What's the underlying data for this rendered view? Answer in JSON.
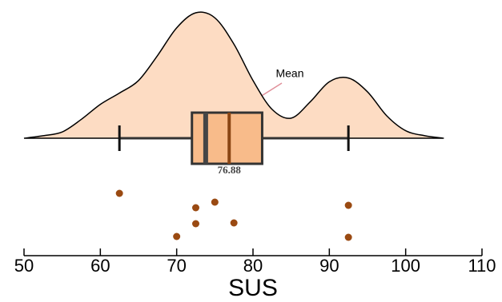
{
  "chart_data": {
    "type": "raincloud",
    "xlabel": "SUS",
    "xlim": [
      50,
      110
    ],
    "xticks": [
      50,
      60,
      70,
      80,
      90,
      100,
      110
    ],
    "density": {
      "x": [
        50,
        52.5,
        55,
        57.5,
        60,
        62.5,
        65,
        67.5,
        70,
        72.5,
        75,
        77.5,
        80,
        82.5,
        85,
        87.5,
        90,
        92.5,
        95,
        97.5,
        100,
        102.5,
        105
      ],
      "values": [
        0,
        0.02,
        0.05,
        0.15,
        0.27,
        0.36,
        0.46,
        0.66,
        0.88,
        1.0,
        0.96,
        0.75,
        0.46,
        0.23,
        0.16,
        0.29,
        0.45,
        0.48,
        0.37,
        0.18,
        0.06,
        0.02,
        0
      ],
      "color": "#fddcc3"
    },
    "box": {
      "min": 62.5,
      "q1": 72,
      "median": 73.8,
      "q3": 81.2,
      "max": 92.5,
      "mean": 76.88,
      "color": "#f8bb8a",
      "median_color": "#454545",
      "mean_color": "#8b4513"
    },
    "annotation": "Mean",
    "points": [
      62.5,
      72.5,
      72.5,
      75,
      77.5,
      70,
      92.5,
      92.5
    ],
    "point_color": "#9a4a12"
  }
}
